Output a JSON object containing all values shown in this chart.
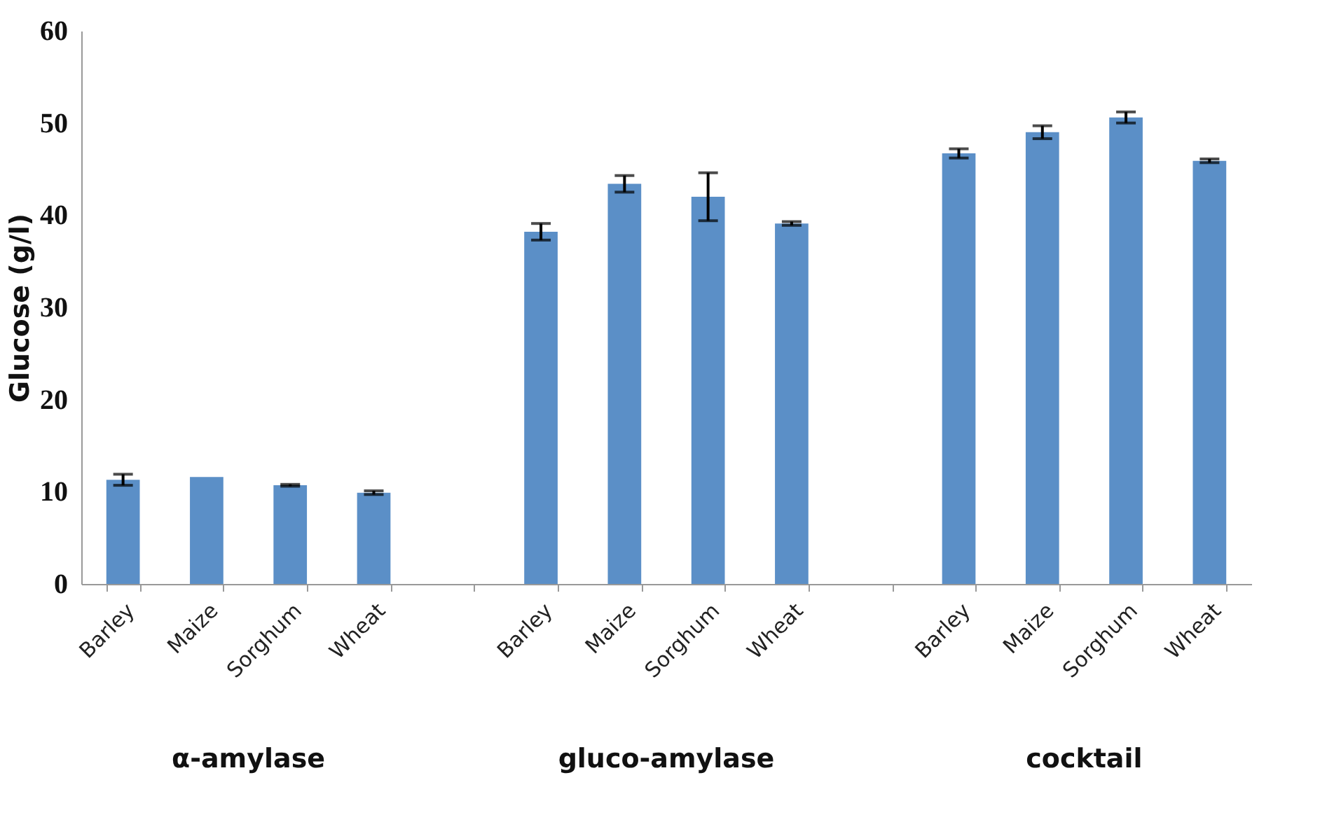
{
  "chart_data": {
    "type": "bar",
    "ylabel": "Glucose (g/l)",
    "categories": [
      "Barley",
      "Maize",
      "Sorghum",
      "Wheat",
      null,
      "Barley",
      "Maize",
      "Sorghum",
      "Wheat",
      null,
      "Barley",
      "Maize",
      "Sorghum",
      "Wheat"
    ],
    "values": [
      11.3,
      11.6,
      10.7,
      9.9,
      null,
      38.2,
      43.4,
      42.0,
      39.1,
      null,
      46.7,
      49.0,
      50.6,
      45.9
    ],
    "errors": [
      0.6,
      null,
      0.1,
      0.2,
      null,
      0.9,
      0.9,
      2.6,
      0.2,
      null,
      0.5,
      0.7,
      0.6,
      0.2
    ],
    "color": "#5b8fc7",
    "ylim": [
      0,
      60
    ],
    "yticks": [
      0,
      10,
      20,
      30,
      40,
      50,
      60
    ],
    "grid": false,
    "annotations": [
      "α-amylase",
      "gluco-amylase",
      "cocktail"
    ]
  }
}
